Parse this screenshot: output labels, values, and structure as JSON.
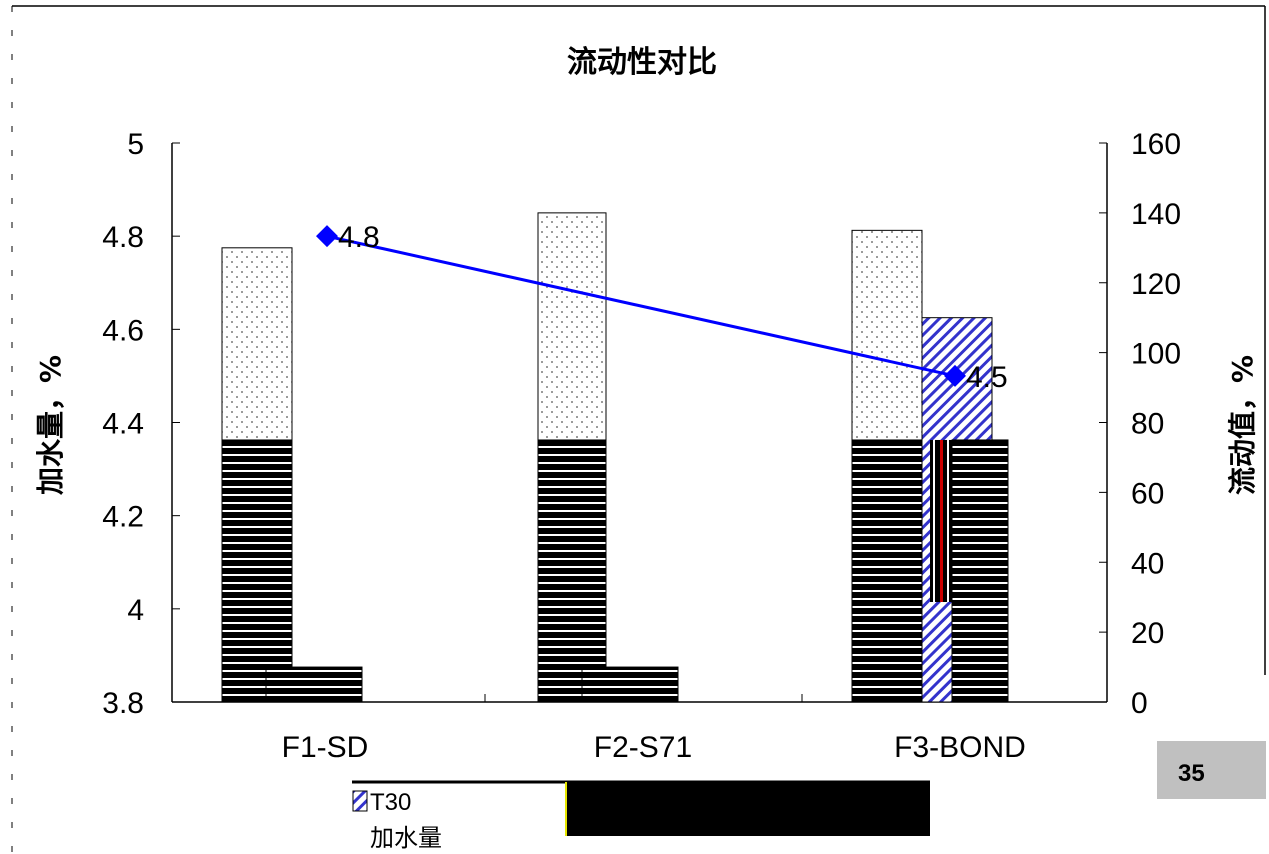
{
  "chart_data": {
    "type": "bar",
    "title": "流动性对比",
    "categories": [
      "F1-SD",
      "F2-S71",
      "F3-BOND"
    ],
    "left_axis": {
      "label": "加水量，%",
      "range": [
        3.8,
        5.0
      ],
      "ticks": [
        "5",
        "4.8",
        "4.6",
        "4.4",
        "4.2",
        "4",
        "3.8"
      ],
      "tick_values": [
        5.0,
        4.8,
        4.6,
        4.4,
        4.2,
        4.0,
        3.8
      ]
    },
    "right_axis": {
      "label": "流动值，%",
      "range": [
        0,
        160
      ],
      "ticks": [
        "160",
        "140",
        "120",
        "100",
        "80",
        "60",
        "40",
        "20",
        "0"
      ],
      "tick_values": [
        160,
        140,
        120,
        100,
        80,
        60,
        40,
        20,
        0
      ]
    },
    "series": [
      {
        "name": "",
        "axis": "right",
        "kind": "bar",
        "pattern": "dots",
        "values": [
          130,
          140,
          135
        ]
      },
      {
        "name": "",
        "axis": "right",
        "kind": "bar",
        "pattern": "stripes",
        "values": [
          75,
          75,
          75
        ]
      },
      {
        "name": "T30",
        "axis": "right",
        "kind": "bar",
        "pattern": "hatch",
        "values": [
          null,
          null,
          110
        ]
      },
      {
        "name": "",
        "axis": "right",
        "kind": "bar",
        "pattern": "stripes",
        "values": [
          10,
          10,
          75
        ]
      },
      {
        "name": "加水量",
        "axis": "left",
        "kind": "line",
        "color": "#0000ff",
        "values": [
          4.8,
          null,
          4.5
        ],
        "labels": [
          "4.8",
          "",
          "4.5"
        ]
      }
    ],
    "legend": {
      "position": "bottom",
      "entries": [
        "T30",
        "加水量"
      ]
    },
    "grid": false
  },
  "page_badge": "35",
  "colors": {
    "line": "#0000ff",
    "hatch": "#3333cc",
    "red": "#cc0000",
    "badge_bg": "#c0c0c0"
  }
}
